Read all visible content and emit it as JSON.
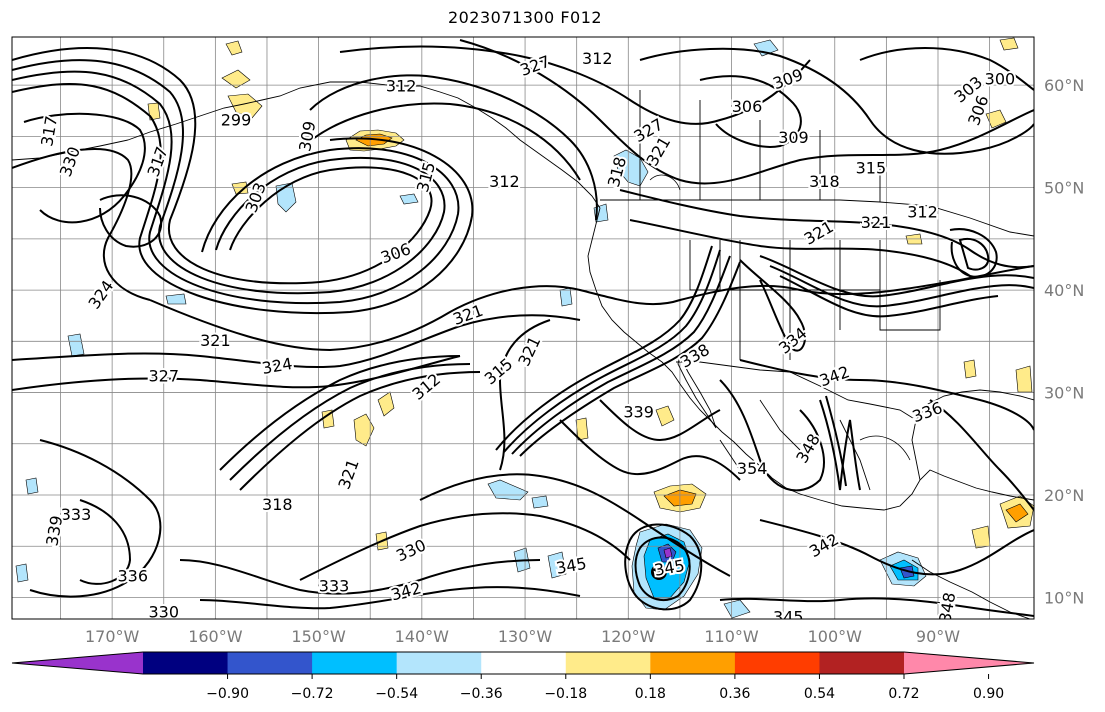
{
  "title": "2023071300 F012",
  "lon_ticks": [
    "170°W",
    "160°W",
    "150°W",
    "140°W",
    "130°W",
    "120°W",
    "110°W",
    "100°W",
    "90°W"
  ],
  "lat_ticks": [
    "10°N",
    "20°N",
    "30°N",
    "40°N",
    "50°N",
    "60°N"
  ],
  "colorbar": {
    "colors": [
      "#9933cc",
      "#000080",
      "#3355cc",
      "#00bfff",
      "#b3e5fc",
      "#ffffff",
      "#ffeb8a",
      "#ff9f00",
      "#ff3d00",
      "#b22222",
      "#ff88aa"
    ],
    "labels": [
      "−0.90",
      "−0.72",
      "−0.54",
      "−0.36",
      "−0.18",
      "0.18",
      "0.36",
      "0.54",
      "0.72",
      "0.90"
    ]
  },
  "contour_labels": [
    {
      "text": "327",
      "lon": -129,
      "lat": 61.8,
      "rot": -20
    },
    {
      "text": "312",
      "lon": -123,
      "lat": 62.5,
      "rot": 0
    },
    {
      "text": "309",
      "lon": -104.5,
      "lat": 60.5,
      "rot": -20
    },
    {
      "text": "303",
      "lon": -87,
      "lat": 59.5,
      "rot": -40
    },
    {
      "text": "300",
      "lon": -84,
      "lat": 60.5,
      "rot": 0
    },
    {
      "text": "312",
      "lon": -142,
      "lat": 59.8,
      "rot": 0
    },
    {
      "text": "306",
      "lon": -108.5,
      "lat": 57.8,
      "rot": 0
    },
    {
      "text": "306",
      "lon": -86,
      "lat": 57.5,
      "rot": -70
    },
    {
      "text": "327",
      "lon": -118,
      "lat": 55.5,
      "rot": -30
    },
    {
      "text": "309",
      "lon": -104,
      "lat": 54.8,
      "rot": 0
    },
    {
      "text": "321",
      "lon": -117,
      "lat": 53.5,
      "rot": -60
    },
    {
      "text": "318",
      "lon": -121,
      "lat": 51.5,
      "rot": -75
    },
    {
      "text": "315",
      "lon": -96.5,
      "lat": 51.8,
      "rot": 0
    },
    {
      "text": "318",
      "lon": -101,
      "lat": 50.5,
      "rot": 0
    },
    {
      "text": "312",
      "lon": -132,
      "lat": 50.5,
      "rot": 0
    },
    {
      "text": "315",
      "lon": -139.5,
      "lat": 51,
      "rot": -75
    },
    {
      "text": "309",
      "lon": -151,
      "lat": 55,
      "rot": -80
    },
    {
      "text": "299",
      "lon": -158,
      "lat": 56.5,
      "rot": 0
    },
    {
      "text": "317",
      "lon": -176,
      "lat": 55.5,
      "rot": -80
    },
    {
      "text": "330",
      "lon": -174,
      "lat": 52.5,
      "rot": -70
    },
    {
      "text": "317",
      "lon": -165.5,
      "lat": 52.5,
      "rot": -70
    },
    {
      "text": "303",
      "lon": -156,
      "lat": 49,
      "rot": -70
    },
    {
      "text": "306",
      "lon": -142.5,
      "lat": 43.5,
      "rot": -20
    },
    {
      "text": "321",
      "lon": -101.5,
      "lat": 45.5,
      "rot": -30
    },
    {
      "text": "321",
      "lon": -96,
      "lat": 46.5,
      "rot": 0
    },
    {
      "text": "312",
      "lon": -91.5,
      "lat": 47.5,
      "rot": 0
    },
    {
      "text": "324",
      "lon": -171,
      "lat": 39.5,
      "rot": -55
    },
    {
      "text": "321",
      "lon": -135.5,
      "lat": 37.5,
      "rot": -20
    },
    {
      "text": "321",
      "lon": -160,
      "lat": 35,
      "rot": 0
    },
    {
      "text": "321",
      "lon": -129.5,
      "lat": 34,
      "rot": -65
    },
    {
      "text": "327",
      "lon": -165,
      "lat": 31.5,
      "rot": 0
    },
    {
      "text": "324",
      "lon": -154,
      "lat": 32.5,
      "rot": -10
    },
    {
      "text": "315",
      "lon": -132.5,
      "lat": 32,
      "rot": -40
    },
    {
      "text": "312",
      "lon": -139.5,
      "lat": 30.5,
      "rot": -40
    },
    {
      "text": "338",
      "lon": -113.5,
      "lat": 33.5,
      "rot": -30
    },
    {
      "text": "334",
      "lon": -104,
      "lat": 35,
      "rot": -40
    },
    {
      "text": "342",
      "lon": -100,
      "lat": 31.5,
      "rot": -20
    },
    {
      "text": "336",
      "lon": -91,
      "lat": 28,
      "rot": -20
    },
    {
      "text": "339",
      "lon": -119,
      "lat": 28,
      "rot": 0
    },
    {
      "text": "348",
      "lon": -102.5,
      "lat": 24.5,
      "rot": -60
    },
    {
      "text": "354",
      "lon": -108,
      "lat": 22.5,
      "rot": 0
    },
    {
      "text": "321",
      "lon": -147,
      "lat": 22,
      "rot": -70
    },
    {
      "text": "318",
      "lon": -154,
      "lat": 19,
      "rot": 0
    },
    {
      "text": "333",
      "lon": -173.5,
      "lat": 18,
      "rot": 0
    },
    {
      "text": "339",
      "lon": -175.5,
      "lat": 16.5,
      "rot": -80
    },
    {
      "text": "330",
      "lon": -141,
      "lat": 14.5,
      "rot": -25
    },
    {
      "text": "342",
      "lon": -141.5,
      "lat": 10.5,
      "rot": -15
    },
    {
      "text": "333",
      "lon": -148.5,
      "lat": 11,
      "rot": 0
    },
    {
      "text": "336",
      "lon": -168,
      "lat": 12,
      "rot": 0
    },
    {
      "text": "330",
      "lon": -165,
      "lat": 8.5,
      "rot": 0
    },
    {
      "text": "345",
      "lon": -125.5,
      "lat": 13,
      "rot": -10
    },
    {
      "text": "345",
      "lon": -116,
      "lat": 12.8,
      "rot": -10
    },
    {
      "text": "342",
      "lon": -101,
      "lat": 15,
      "rot": -30
    },
    {
      "text": "345",
      "lon": -104.5,
      "lat": 8,
      "rot": 0
    },
    {
      "text": "348",
      "lon": -89,
      "lat": 9,
      "rot": -80
    }
  ]
}
